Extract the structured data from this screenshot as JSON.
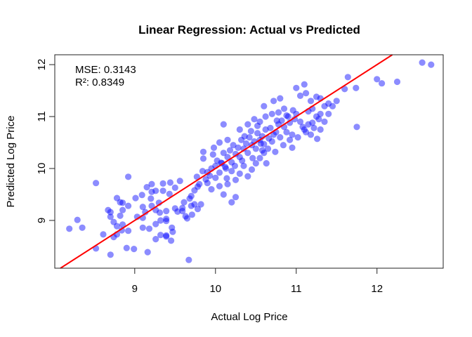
{
  "chart_data": {
    "type": "scatter",
    "title": "Linear Regression: Actual vs Predicted",
    "xlabel": "Actual Log Price",
    "ylabel": "Predicted Log Price",
    "xlim": [
      8.01,
      12.82
    ],
    "ylim": [
      8.08,
      12.19
    ],
    "xticks": [
      9,
      10,
      11,
      12
    ],
    "yticks": [
      9,
      10,
      11,
      12
    ],
    "grid": false,
    "annotations": [
      "MSE: 0.3143",
      "R²: 0.8349"
    ],
    "colors": {
      "points": "#0000ff",
      "point_alpha": 0.45,
      "line": "#ff0000"
    },
    "reference_line": {
      "label": "y = x",
      "slope": 1,
      "intercept": 0
    },
    "points": [
      [
        8.19,
        8.84
      ],
      [
        8.29,
        9.01
      ],
      [
        8.35,
        8.86
      ],
      [
        8.52,
        9.72
      ],
      [
        8.52,
        8.46
      ],
      [
        8.61,
        8.73
      ],
      [
        8.7,
        8.34
      ],
      [
        8.67,
        9.2
      ],
      [
        8.7,
        9.16
      ],
      [
        8.7,
        9.07
      ],
      [
        8.74,
        8.97
      ],
      [
        8.78,
        8.89
      ],
      [
        8.78,
        8.73
      ],
      [
        8.74,
        8.68
      ],
      [
        8.84,
        8.81
      ],
      [
        8.85,
        8.92
      ],
      [
        8.82,
        9.09
      ],
      [
        8.85,
        9.2
      ],
      [
        8.82,
        9.35
      ],
      [
        8.85,
        9.34
      ],
      [
        8.78,
        9.43
      ],
      [
        8.92,
        9.28
      ],
      [
        8.92,
        8.8
      ],
      [
        8.9,
        8.47
      ],
      [
        8.99,
        8.45
      ],
      [
        9.16,
        8.39
      ],
      [
        8.92,
        9.84
      ],
      [
        9.67,
        8.24
      ],
      [
        9.15,
        9.64
      ],
      [
        9.21,
        9.7
      ],
      [
        9.35,
        9.71
      ],
      [
        9.44,
        9.73
      ],
      [
        9.56,
        9.76
      ],
      [
        9.21,
        9.55
      ],
      [
        9.26,
        9.57
      ],
      [
        9.35,
        9.57
      ],
      [
        9.09,
        9.49
      ],
      [
        9.01,
        9.43
      ],
      [
        9.2,
        9.42
      ],
      [
        9.21,
        9.28
      ],
      [
        9.1,
        9.26
      ],
      [
        9.3,
        9.34
      ],
      [
        9.43,
        9.51
      ],
      [
        9.5,
        9.63
      ],
      [
        9.03,
        9.07
      ],
      [
        9.1,
        9.05
      ],
      [
        9.26,
        9.2
      ],
      [
        9.5,
        9.23
      ],
      [
        9.39,
        9.03
      ],
      [
        9.32,
        9.0
      ],
      [
        9.26,
        8.93
      ],
      [
        9.63,
        9.08
      ],
      [
        9.65,
        9.04
      ],
      [
        9.71,
        9.11
      ],
      [
        9.18,
        8.84
      ],
      [
        9.1,
        8.86
      ],
      [
        9.32,
        8.72
      ],
      [
        9.39,
        8.71
      ],
      [
        9.47,
        8.78
      ],
      [
        9.26,
        8.64
      ],
      [
        9.45,
        8.61
      ],
      [
        9.61,
        9.35
      ],
      [
        9.68,
        9.42
      ],
      [
        9.74,
        9.31
      ],
      [
        9.78,
        9.22
      ],
      [
        9.7,
        9.28
      ],
      [
        9.39,
        8.69
      ],
      [
        9.46,
        8.86
      ],
      [
        9.39,
        8.99
      ],
      [
        9.39,
        9.18
      ],
      [
        9.31,
        9.15
      ],
      [
        9.13,
        9.16
      ],
      [
        9.53,
        9.17
      ],
      [
        9.59,
        9.18
      ],
      [
        9.59,
        9.24
      ],
      [
        9.82,
        9.31
      ],
      [
        9.78,
        9.65
      ],
      [
        9.77,
        9.84
      ],
      [
        9.84,
        9.95
      ],
      [
        9.85,
        10.19
      ],
      [
        9.7,
        9.47
      ],
      [
        9.74,
        9.58
      ],
      [
        9.8,
        9.7
      ],
      [
        9.88,
        9.79
      ],
      [
        9.9,
        9.93
      ],
      [
        9.95,
        10.0
      ],
      [
        9.93,
        9.86
      ],
      [
        10.0,
        10.05
      ],
      [
        10.05,
        9.92
      ],
      [
        10.08,
        10.1
      ],
      [
        10.02,
        10.15
      ],
      [
        10.12,
        10.03
      ],
      [
        10.15,
        10.22
      ],
      [
        9.97,
        10.27
      ],
      [
        10.1,
        10.3
      ],
      [
        10.18,
        10.35
      ],
      [
        10.2,
        10.12
      ],
      [
        10.25,
        10.28
      ],
      [
        10.22,
        10.45
      ],
      [
        10.28,
        10.4
      ],
      [
        10.3,
        10.22
      ],
      [
        10.14,
        9.81
      ],
      [
        10.13,
        10.0
      ],
      [
        10.07,
        10.11
      ],
      [
        10.32,
        10.55
      ],
      [
        10.35,
        10.38
      ],
      [
        10.38,
        10.48
      ],
      [
        10.4,
        10.3
      ],
      [
        10.42,
        10.6
      ],
      [
        10.45,
        10.45
      ],
      [
        10.48,
        10.52
      ],
      [
        10.5,
        10.38
      ],
      [
        10.52,
        10.68
      ],
      [
        10.55,
        10.55
      ],
      [
        10.58,
        10.62
      ],
      [
        10.6,
        10.47
      ],
      [
        10.62,
        10.75
      ],
      [
        10.0,
        9.82
      ],
      [
        9.9,
        9.72
      ],
      [
        9.95,
        9.6
      ],
      [
        10.05,
        9.66
      ],
      [
        10.15,
        9.7
      ],
      [
        10.25,
        9.78
      ],
      [
        10.3,
        9.9
      ],
      [
        10.2,
        9.95
      ],
      [
        10.1,
        9.5
      ],
      [
        10.25,
        9.45
      ],
      [
        10.2,
        9.35
      ],
      [
        10.4,
        9.85
      ],
      [
        10.45,
        9.98
      ],
      [
        10.35,
        10.05
      ],
      [
        10.5,
        10.1
      ],
      [
        10.55,
        10.2
      ],
      [
        10.6,
        10.3
      ],
      [
        10.65,
        10.38
      ],
      [
        10.7,
        10.52
      ],
      [
        10.72,
        10.65
      ],
      [
        10.68,
        10.78
      ],
      [
        10.75,
        10.7
      ],
      [
        10.78,
        10.85
      ],
      [
        10.8,
        10.6
      ],
      [
        10.82,
        10.92
      ],
      [
        10.85,
        10.8
      ],
      [
        10.88,
        10.7
      ],
      [
        10.9,
        11.0
      ],
      [
        10.92,
        10.88
      ],
      [
        10.95,
        10.65
      ],
      [
        10.98,
        10.95
      ],
      [
        11.0,
        11.05
      ],
      [
        10.05,
        10.5
      ],
      [
        10.15,
        10.55
      ],
      [
        9.98,
        10.4
      ],
      [
        10.3,
        10.75
      ],
      [
        10.4,
        10.85
      ],
      [
        10.48,
        10.95
      ],
      [
        10.55,
        10.9
      ],
      [
        10.62,
        11.0
      ],
      [
        10.7,
        11.05
      ],
      [
        10.78,
        11.08
      ],
      [
        10.85,
        11.15
      ],
      [
        10.6,
        11.2
      ],
      [
        10.72,
        11.3
      ],
      [
        10.8,
        11.35
      ],
      [
        10.1,
        10.85
      ],
      [
        9.85,
        10.32
      ],
      [
        11.05,
        10.9
      ],
      [
        11.08,
        10.8
      ],
      [
        11.1,
        10.75
      ],
      [
        11.15,
        10.85
      ],
      [
        11.2,
        10.88
      ],
      [
        11.25,
        11.0
      ],
      [
        11.3,
        11.05
      ],
      [
        11.12,
        10.7
      ],
      [
        11.18,
        10.65
      ],
      [
        11.22,
        10.78
      ],
      [
        11.28,
        10.95
      ],
      [
        11.35,
        11.2
      ],
      [
        11.4,
        11.25
      ],
      [
        11.05,
        11.4
      ],
      [
        11.12,
        11.45
      ],
      [
        11.18,
        11.3
      ],
      [
        11.0,
        11.55
      ],
      [
        11.1,
        11.62
      ],
      [
        11.25,
        11.38
      ],
      [
        11.3,
        11.35
      ],
      [
        11.45,
        11.2
      ],
      [
        11.6,
        11.53
      ],
      [
        11.75,
        10.8
      ],
      [
        11.26,
        10.57
      ],
      [
        11.2,
        11.15
      ],
      [
        11.02,
        10.6
      ],
      [
        10.95,
        10.4
      ],
      [
        11.35,
        10.9
      ],
      [
        11.4,
        11.05
      ],
      [
        11.15,
        11.1
      ],
      [
        11.3,
        10.75
      ],
      [
        11.5,
        11.3
      ],
      [
        11.74,
        11.55
      ],
      [
        11.64,
        11.76
      ],
      [
        12.0,
        11.72
      ],
      [
        12.06,
        11.64
      ],
      [
        12.25,
        11.67
      ],
      [
        12.56,
        12.04
      ],
      [
        12.67,
        12.0
      ],
      [
        10.24,
        10.05
      ],
      [
        10.33,
        10.15
      ],
      [
        10.46,
        10.2
      ],
      [
        10.58,
        10.35
      ],
      [
        10.63,
        10.1
      ],
      [
        10.74,
        10.32
      ],
      [
        10.84,
        10.45
      ],
      [
        10.92,
        10.55
      ],
      [
        10.36,
        10.62
      ],
      [
        10.44,
        10.72
      ],
      [
        10.52,
        10.82
      ],
      [
        10.56,
        10.48
      ],
      [
        10.66,
        10.58
      ],
      [
        10.76,
        10.92
      ],
      [
        10.88,
        11.02
      ],
      [
        10.96,
        11.12
      ]
    ]
  }
}
